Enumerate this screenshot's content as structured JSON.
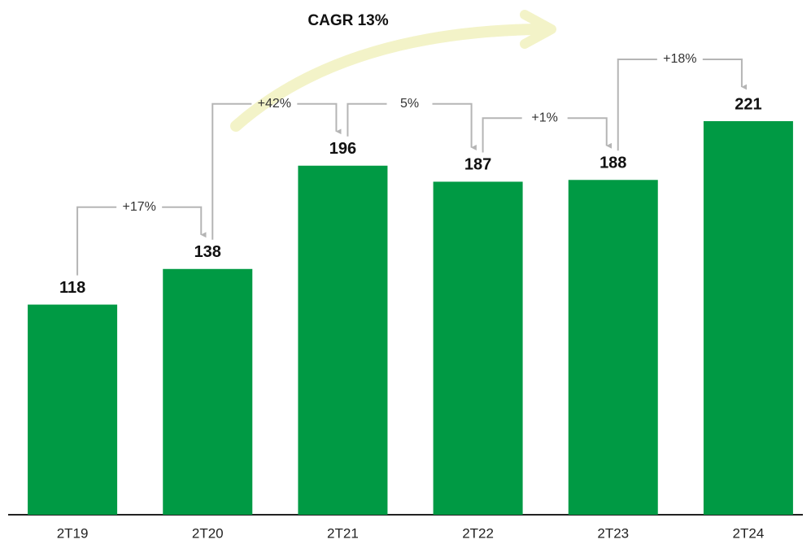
{
  "chart_data": {
    "type": "bar",
    "categories": [
      "2T19",
      "2T20",
      "2T21",
      "2T22",
      "2T23",
      "2T24"
    ],
    "values": [
      118,
      138,
      196,
      187,
      188,
      221
    ],
    "color": "#009a44",
    "growth_labels": [
      "+17%",
      "+42%",
      "5%",
      "+1%",
      "+18%"
    ],
    "cagr_label": "CAGR 13%"
  }
}
